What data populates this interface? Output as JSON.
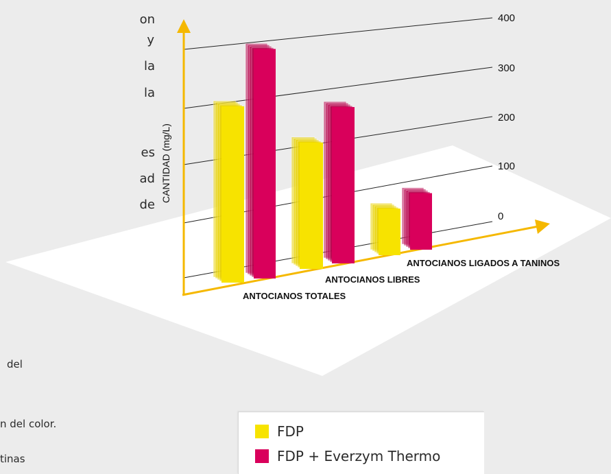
{
  "background_text": {
    "line1": "on",
    "line2": "y",
    "line3": "la",
    "line4": "la",
    "line5": "es",
    "line6": "ad",
    "line7": "de",
    "line8": "del",
    "line9": "n del color.",
    "line10": "tinas"
  },
  "colors": {
    "fdp": "#f7e300",
    "fdp_everzym": "#d9005b",
    "axis": "#f5b800",
    "floor": "#ffffff",
    "background": "#ececec"
  },
  "chart_data": {
    "type": "bar",
    "ylabel": "CANTIDAD (mg/L)",
    "xlabel": "",
    "y_ticks": [
      "0",
      "100",
      "200",
      "300",
      "400"
    ],
    "ylim": [
      0,
      400
    ],
    "categories": [
      "ANTOCIANOS TOTALES",
      "ANTOCIANOS LIBRES",
      "ANTOCIANOS LIGADOS A TANINOS"
    ],
    "series": [
      {
        "name": "FDP",
        "values": [
          265,
          190,
          70
        ]
      },
      {
        "name": "FDP + Everzym Thermo",
        "values": [
          345,
          235,
          85
        ]
      }
    ],
    "legend_position": "bottom"
  },
  "legend": {
    "item1_label": "FDP",
    "item2_label": "FDP + Everzym Thermo"
  }
}
